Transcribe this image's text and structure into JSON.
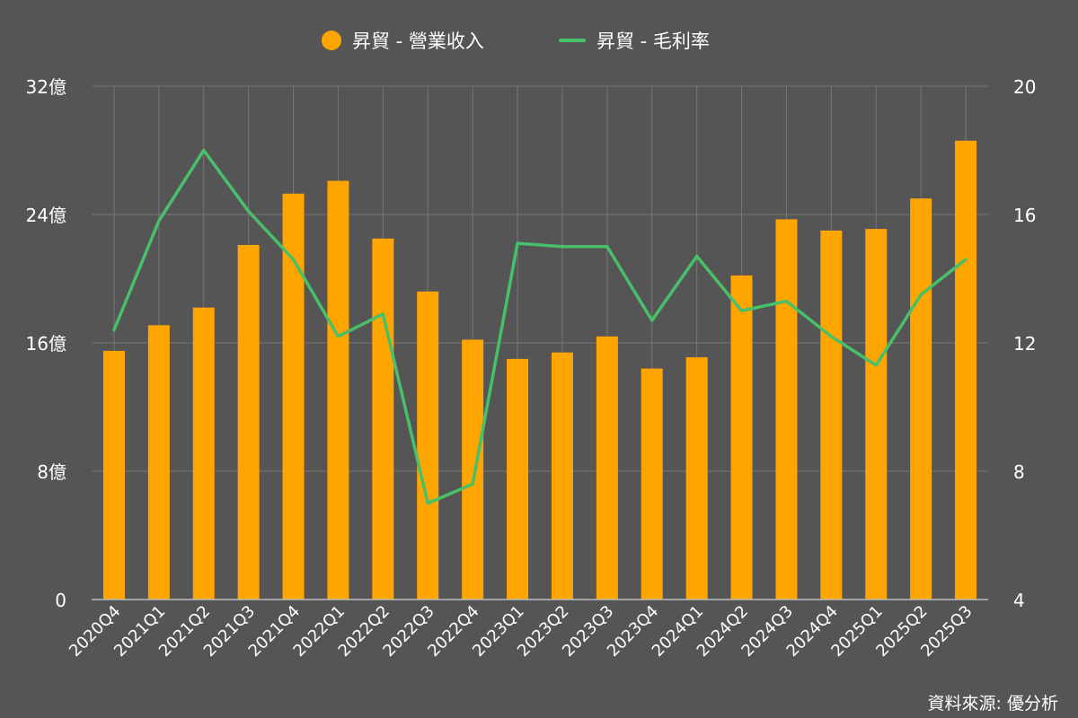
{
  "legend": {
    "revenue_label": "昇貿 - 營業收入",
    "margin_label": "昇貿 - 毛利率"
  },
  "source": "資料來源: 優分析",
  "colors": {
    "background": "#555555",
    "bar": "#FFA500",
    "line": "#48C069",
    "grid": "#777777",
    "text": "#FFFFFF"
  },
  "chart_data": {
    "type": "bar+line",
    "title": "",
    "categories": [
      "2020Q4",
      "2021Q1",
      "2021Q2",
      "2021Q3",
      "2021Q4",
      "2022Q1",
      "2022Q2",
      "2022Q3",
      "2022Q4",
      "2023Q1",
      "2023Q2",
      "2023Q3",
      "2023Q4",
      "2024Q1",
      "2024Q2",
      "2024Q3",
      "2024Q4",
      "2025Q1",
      "2025Q2",
      "2025Q3"
    ],
    "series": [
      {
        "name": "昇貿 - 營業收入",
        "type": "bar",
        "axis": "left",
        "unit": "億",
        "values": [
          15.5,
          17.1,
          18.2,
          22.1,
          25.3,
          26.1,
          22.5,
          19.2,
          16.2,
          15.0,
          15.4,
          16.4,
          14.4,
          15.1,
          20.2,
          23.7,
          23.0,
          23.1,
          25.0,
          28.6
        ]
      },
      {
        "name": "昇貿 - 毛利率",
        "type": "line",
        "axis": "right",
        "values": [
          12.4,
          15.8,
          18.0,
          16.1,
          14.6,
          12.2,
          12.9,
          7.0,
          7.6,
          15.1,
          15.0,
          15.0,
          12.7,
          14.7,
          13.0,
          13.3,
          12.2,
          11.3,
          13.5,
          14.6
        ]
      }
    ],
    "y_left": {
      "min": 0,
      "max": 32,
      "ticks": [
        0,
        8,
        16,
        24,
        32
      ],
      "tick_labels": [
        "0",
        "8億",
        "16億",
        "24億",
        "32億"
      ]
    },
    "y_right": {
      "min": 4,
      "max": 20,
      "ticks": [
        4,
        8,
        12,
        16,
        20
      ],
      "tick_labels": [
        "4",
        "8",
        "12",
        "16",
        "20"
      ]
    },
    "grid": true,
    "legend_position": "top"
  }
}
